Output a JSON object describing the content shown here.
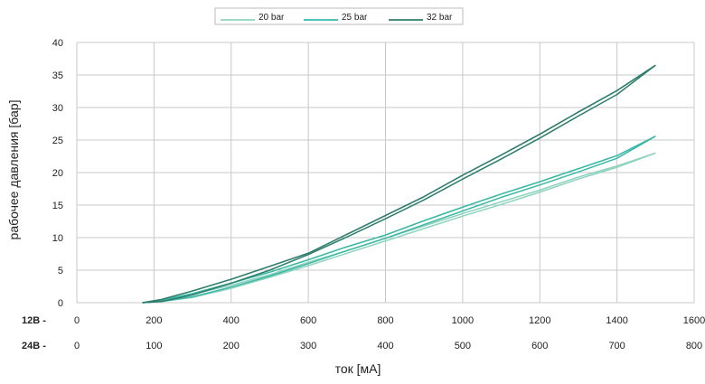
{
  "chart_data": {
    "type": "line",
    "xlabel": "ток [мА]",
    "ylabel": "рабочее давления [бар]",
    "ylim": [
      0,
      40
    ],
    "yticks": [
      "0",
      "5",
      "10",
      "15",
      "20",
      "25",
      "30",
      "35",
      "40"
    ],
    "xlim": [
      0,
      1600
    ],
    "x_axes": [
      {
        "label": "12В -",
        "ticks": [
          "0",
          "200",
          "400",
          "600",
          "800",
          "1000",
          "1200",
          "1400",
          "1600"
        ]
      },
      {
        "label": "24В -",
        "ticks": [
          "0",
          "100",
          "200",
          "300",
          "400",
          "500",
          "600",
          "700",
          "800"
        ]
      }
    ],
    "grid": true,
    "legend_position": "top-center",
    "series": [
      {
        "name": "20 bar",
        "color": "#8fd3bf",
        "x": [
          170,
          220,
          300,
          400,
          500,
          600,
          700,
          800,
          900,
          1000,
          1100,
          1200,
          1300,
          1400,
          1500
        ],
        "y": [
          0,
          0.4,
          1.3,
          2.7,
          4.3,
          6.2,
          8.0,
          9.9,
          11.8,
          13.7,
          15.5,
          17.3,
          19.3,
          21.0,
          23.0
        ],
        "y_return": [
          0,
          0.2,
          0.8,
          2.2,
          3.9,
          5.7,
          7.6,
          9.5,
          11.4,
          13.3,
          15.1,
          17.0,
          19.0,
          20.8,
          23.0
        ]
      },
      {
        "name": "25 bar",
        "color": "#3bb8a5",
        "x": [
          170,
          220,
          300,
          400,
          500,
          600,
          700,
          800,
          900,
          1000,
          1100,
          1200,
          1300,
          1400,
          1500
        ],
        "y": [
          0,
          0.4,
          1.4,
          3.0,
          4.7,
          6.6,
          8.6,
          10.4,
          12.6,
          14.7,
          16.7,
          18.6,
          20.6,
          22.6,
          25.6
        ],
        "y_return": [
          0,
          0.2,
          0.9,
          2.4,
          4.1,
          6.0,
          8.0,
          9.9,
          12.0,
          14.1,
          16.2,
          18.1,
          20.1,
          22.2,
          25.6
        ]
      },
      {
        "name": "32 bar",
        "color": "#2e7d6c",
        "x": [
          170,
          220,
          300,
          400,
          500,
          600,
          700,
          800,
          900,
          1000,
          1100,
          1200,
          1300,
          1400,
          1500
        ],
        "y": [
          0,
          0.5,
          1.8,
          3.6,
          5.6,
          7.6,
          10.5,
          13.4,
          16.3,
          19.6,
          22.7,
          25.9,
          29.3,
          32.6,
          36.5
        ],
        "y_return": [
          0,
          0.2,
          1.2,
          3.0,
          5.0,
          7.4,
          10.1,
          12.9,
          15.8,
          19.0,
          22.1,
          25.3,
          28.7,
          32.0,
          36.5
        ]
      }
    ]
  }
}
